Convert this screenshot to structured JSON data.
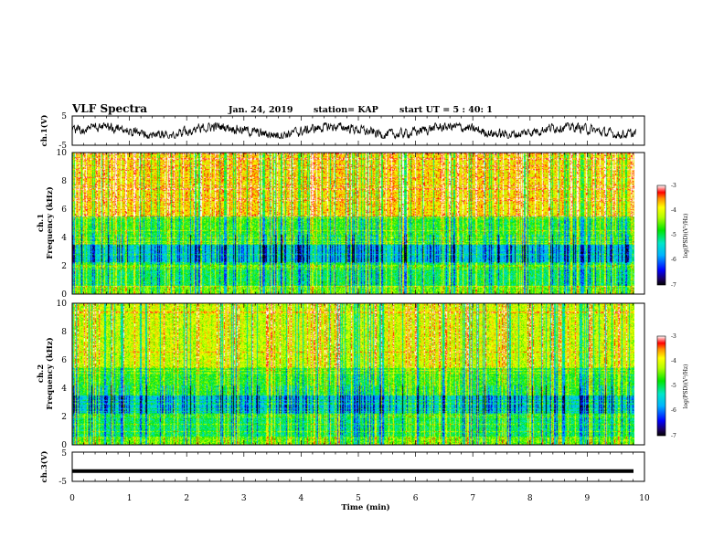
{
  "header": {
    "title": "VLF Spectra",
    "date": "Jan. 24, 2019",
    "station": "station= KAP",
    "start_ut": "start  UT =   5 : 40: 1"
  },
  "chart_data": [
    {
      "type": "line",
      "name": "ch1-waveform",
      "ylabel": "ch.1(V)",
      "ylim": [
        -5,
        5
      ],
      "yticks": [
        "5",
        "-5"
      ],
      "xlim": [
        0,
        10
      ],
      "description": "noisy waveform fluctuating roughly between -2 and +2 V over 0-9.8 min"
    },
    {
      "type": "heatmap",
      "name": "ch1-spectrogram",
      "ylabel_top": "ch.1",
      "ylabel": "Frequency  (kHz)",
      "ylim": [
        0,
        10
      ],
      "yticks": [
        "0",
        "2",
        "4",
        "6",
        "8",
        "10"
      ],
      "xlim": [
        0,
        10
      ],
      "data_extent_min": 9.85,
      "colorbar": {
        "label": "log(PSD)(V²/Hz)",
        "range": [
          -7,
          -3
        ],
        "ticks": [
          "-3",
          "-4",
          "-5",
          "-6",
          "-7"
        ]
      }
    },
    {
      "type": "heatmap",
      "name": "ch2-spectrogram",
      "ylabel_top": "ch.2",
      "ylabel": "Frequency  (kHz)",
      "ylim": [
        0,
        10
      ],
      "yticks": [
        "0",
        "2",
        "4",
        "6",
        "8",
        "10"
      ],
      "xlim": [
        0,
        10
      ],
      "data_extent_min": 9.85,
      "colorbar": {
        "label": "log(PSD)(V²/Hz)",
        "range": [
          -7,
          -3
        ],
        "ticks": [
          "-3",
          "-4",
          "-5",
          "-6",
          "-7"
        ]
      }
    },
    {
      "type": "line",
      "name": "ch3-waveform",
      "ylabel": "ch.3(V)",
      "ylim": [
        -5,
        5
      ],
      "yticks": [
        "5",
        "-5"
      ],
      "xlim": [
        0,
        10
      ],
      "constant_value": -1.5,
      "xlabel": "Time  (min)",
      "xticks": [
        "0",
        "1",
        "2",
        "3",
        "4",
        "5",
        "6",
        "7",
        "8",
        "9",
        "10"
      ]
    }
  ]
}
